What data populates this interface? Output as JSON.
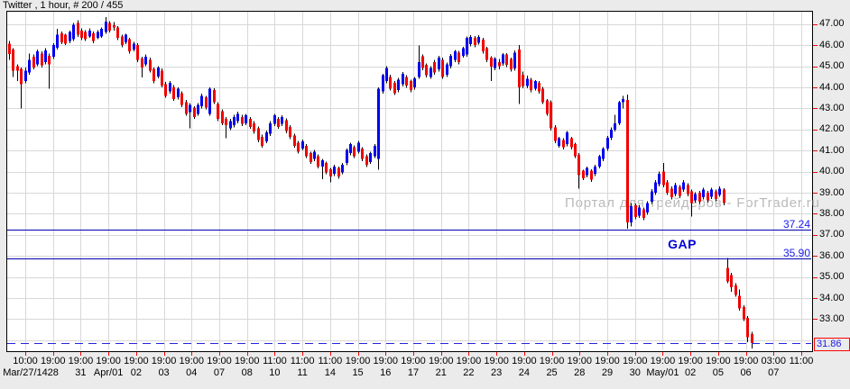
{
  "window": {
    "title": "Twitter , 1 hour, # 200 / 455"
  },
  "watermark": {
    "text": "Портал для трейдеров - ForTrader.ru"
  },
  "colors": {
    "up_candle": "#0000f0",
    "down_candle": "#f20000",
    "wick": "#000000",
    "grid": "#d8d8d8",
    "plot_bg": "#ffffff",
    "outer_bg": "#ebebeb",
    "border": "#000000",
    "level_line": "#0000b0",
    "dashed_line": "#2525dd",
    "level_text": "#1a1aee",
    "gap_text": "#0000d8",
    "watermark_text": "#b9b9b9",
    "axis_tick": "#ff0000",
    "axis_text": "#000000",
    "current_box_border": "#ff0000"
  },
  "chart_data": {
    "type": "candlestick",
    "symbol": "Twitter",
    "timeframe": "1 hour",
    "bar_counter": "# 200 / 455",
    "title": "Twitter , 1 hour, # 200 / 455",
    "grid": true,
    "ylim": [
      31.5,
      47.5
    ],
    "y_axis_labels": [
      "47.00",
      "46.00",
      "45.00",
      "44.00",
      "43.00",
      "42.00",
      "41.00",
      "40.00",
      "39.00",
      "38.00",
      "37.00",
      "36.00",
      "35.00",
      "34.00",
      "33.00"
    ],
    "x_axis_ticks": [
      {
        "time": "10:00",
        "date": "Mar/27/14"
      },
      {
        "time": "19:00",
        "date": "28"
      },
      {
        "time": "19:00",
        "date": "31"
      },
      {
        "time": "19:00",
        "date": "Apr/01"
      },
      {
        "time": "19:00",
        "date": "02"
      },
      {
        "time": "19:00",
        "date": "03"
      },
      {
        "time": "19:00",
        "date": "04"
      },
      {
        "time": "19:00",
        "date": "07"
      },
      {
        "time": "19:00",
        "date": "08"
      },
      {
        "time": "11:00",
        "date": "10"
      },
      {
        "time": "11:00",
        "date": "11"
      },
      {
        "time": "11:00",
        "date": "14"
      },
      {
        "time": "19:00",
        "date": "15"
      },
      {
        "time": "19:00",
        "date": "16"
      },
      {
        "time": "19:00",
        "date": "17"
      },
      {
        "time": "19:00",
        "date": "21"
      },
      {
        "time": "19:00",
        "date": "22"
      },
      {
        "time": "19:00",
        "date": "23"
      },
      {
        "time": "19:00",
        "date": "24"
      },
      {
        "time": "19:00",
        "date": "25"
      },
      {
        "time": "19:00",
        "date": "28"
      },
      {
        "time": "19:00",
        "date": "29"
      },
      {
        "time": "19:00",
        "date": "30"
      },
      {
        "time": "19:00",
        "date": "May/01"
      },
      {
        "time": "19:00",
        "date": "02"
      },
      {
        "time": "19:00",
        "date": "05"
      },
      {
        "time": "19:00",
        "date": "06"
      },
      {
        "time": "03:00",
        "date": "07"
      },
      {
        "time": "11:00",
        "date": ""
      }
    ],
    "levels": {
      "upper": {
        "price": 37.24,
        "label": "37.24",
        "line_style": "solid"
      },
      "lower": {
        "price": 35.9,
        "label": "35.90",
        "line_style": "solid"
      },
      "current": {
        "price": 31.86,
        "label": "31.86",
        "line_style": "dashed",
        "boxed": true
      }
    },
    "gap_label": "GAP",
    "candles_ohlc": [
      [
        46.08,
        46.2,
        45.3,
        45.58
      ],
      [
        45.8,
        45.85,
        44.5,
        44.8
      ],
      [
        45.0,
        45.1,
        44.29,
        44.8
      ],
      [
        44.87,
        44.95,
        43.0,
        44.15
      ],
      [
        44.3,
        44.95,
        44.2,
        44.8
      ],
      [
        44.7,
        45.6,
        44.6,
        45.3
      ],
      [
        45.45,
        45.55,
        44.85,
        44.95
      ],
      [
        45.1,
        45.8,
        45.0,
        45.7
      ],
      [
        45.6,
        45.7,
        44.95,
        45.05
      ],
      [
        45.2,
        45.85,
        45.1,
        45.75
      ],
      [
        45.5,
        45.6,
        43.93,
        45.1
      ],
      [
        45.45,
        46.1,
        45.35,
        46.0
      ],
      [
        45.87,
        46.77,
        45.8,
        46.5
      ],
      [
        46.56,
        46.65,
        46.05,
        46.14
      ],
      [
        46.49,
        46.55,
        46.0,
        46.07
      ],
      [
        46.2,
        46.7,
        46.1,
        46.63
      ],
      [
        46.28,
        47.05,
        46.2,
        46.98
      ],
      [
        47.05,
        47.19,
        46.4,
        46.49
      ],
      [
        46.7,
        46.8,
        46.25,
        46.35
      ],
      [
        46.63,
        46.72,
        46.2,
        46.28
      ],
      [
        46.42,
        46.8,
        46.35,
        46.7
      ],
      [
        46.56,
        46.65,
        46.1,
        46.2
      ],
      [
        46.35,
        46.72,
        46.28,
        46.63
      ],
      [
        46.42,
        46.85,
        46.35,
        46.77
      ],
      [
        46.63,
        47.33,
        46.55,
        47.12
      ],
      [
        47.05,
        47.15,
        46.6,
        46.7
      ],
      [
        46.95,
        47.1,
        46.7,
        46.85
      ],
      [
        46.84,
        46.9,
        46.25,
        46.35
      ],
      [
        46.42,
        46.5,
        45.9,
        46.0
      ],
      [
        46.14,
        46.55,
        46.05,
        46.49
      ],
      [
        46.28,
        46.35,
        45.6,
        45.7
      ],
      [
        45.8,
        46.15,
        45.7,
        46.07
      ],
      [
        46.0,
        46.1,
        45.2,
        45.3
      ],
      [
        45.37,
        45.45,
        44.46,
        44.95
      ],
      [
        45.1,
        45.55,
        45.0,
        45.45
      ],
      [
        45.3,
        45.4,
        44.7,
        44.8
      ],
      [
        44.87,
        44.95,
        44.2,
        44.3
      ],
      [
        44.52,
        45.0,
        44.42,
        44.94
      ],
      [
        44.8,
        44.9,
        44.0,
        44.08
      ],
      [
        44.15,
        44.25,
        43.5,
        43.6
      ],
      [
        43.8,
        44.3,
        43.7,
        44.22
      ],
      [
        44.0,
        44.1,
        43.35,
        43.45
      ],
      [
        43.52,
        44.0,
        43.42,
        43.94
      ],
      [
        43.73,
        43.8,
        43.05,
        43.17
      ],
      [
        43.3,
        43.4,
        42.65,
        42.75
      ],
      [
        42.82,
        43.25,
        42.06,
        43.17
      ],
      [
        43.03,
        43.1,
        42.5,
        42.6
      ],
      [
        42.75,
        43.25,
        42.65,
        43.17
      ],
      [
        43.1,
        43.7,
        43.0,
        43.6
      ],
      [
        43.52,
        43.6,
        42.95,
        43.03
      ],
      [
        42.75,
        44.0,
        42.65,
        43.94
      ],
      [
        43.87,
        43.95,
        43.2,
        43.3
      ],
      [
        43.2,
        43.3,
        42.4,
        42.5
      ],
      [
        42.86,
        42.95,
        42.2,
        42.3
      ],
      [
        42.5,
        42.6,
        41.58,
        42.2
      ],
      [
        42.06,
        42.5,
        41.96,
        42.4
      ],
      [
        42.2,
        42.7,
        42.1,
        42.6
      ],
      [
        42.4,
        42.85,
        42.3,
        42.75
      ],
      [
        42.6,
        42.7,
        42.16,
        42.26
      ],
      [
        42.3,
        42.75,
        42.2,
        42.68
      ],
      [
        42.5,
        42.6,
        42.03,
        42.13
      ],
      [
        42.3,
        42.4,
        41.8,
        41.9
      ],
      [
        42.06,
        42.15,
        41.4,
        41.5
      ],
      [
        41.65,
        41.75,
        41.13,
        41.23
      ],
      [
        41.44,
        41.95,
        41.34,
        41.86
      ],
      [
        41.8,
        42.4,
        41.7,
        42.3
      ],
      [
        42.26,
        42.75,
        42.16,
        42.68
      ],
      [
        42.5,
        42.58,
        42.03,
        42.13
      ],
      [
        42.26,
        42.68,
        42.16,
        42.6
      ],
      [
        42.44,
        42.52,
        41.83,
        41.93
      ],
      [
        42.13,
        42.2,
        41.55,
        41.65
      ],
      [
        41.72,
        41.8,
        41.13,
        41.23
      ],
      [
        41.37,
        41.45,
        40.85,
        40.95
      ],
      [
        41.1,
        41.52,
        41.0,
        41.44
      ],
      [
        41.23,
        41.3,
        40.64,
        40.74
      ],
      [
        40.88,
        40.95,
        40.36,
        40.46
      ],
      [
        40.6,
        41.02,
        40.5,
        40.95
      ],
      [
        40.74,
        40.82,
        40.15,
        40.25
      ],
      [
        40.25,
        40.6,
        39.64,
        40.53
      ],
      [
        40.4,
        40.48,
        39.87,
        39.97
      ],
      [
        40.11,
        40.18,
        39.5,
        39.76
      ],
      [
        39.9,
        40.32,
        39.8,
        40.25
      ],
      [
        40.18,
        40.25,
        39.66,
        39.76
      ],
      [
        39.97,
        40.4,
        39.87,
        40.32
      ],
      [
        40.4,
        41.1,
        40.3,
        41.02
      ],
      [
        40.88,
        41.38,
        40.78,
        41.3
      ],
      [
        41.16,
        41.24,
        40.64,
        40.74
      ],
      [
        40.95,
        41.45,
        40.85,
        41.37
      ],
      [
        41.09,
        41.16,
        40.5,
        40.6
      ],
      [
        40.74,
        40.82,
        40.22,
        40.32
      ],
      [
        40.46,
        40.95,
        40.36,
        40.88
      ],
      [
        40.74,
        41.3,
        40.64,
        41.23
      ],
      [
        40.6,
        44.0,
        40.1,
        43.94
      ],
      [
        43.8,
        44.65,
        43.7,
        44.57
      ],
      [
        44.29,
        45.0,
        44.2,
        44.92
      ],
      [
        44.5,
        44.6,
        43.84,
        43.94
      ],
      [
        44.22,
        44.3,
        43.63,
        43.73
      ],
      [
        43.87,
        44.44,
        43.77,
        44.36
      ],
      [
        44.15,
        44.72,
        44.05,
        44.64
      ],
      [
        44.5,
        44.58,
        43.98,
        44.08
      ],
      [
        44.29,
        44.37,
        43.77,
        43.87
      ],
      [
        44.0,
        44.5,
        43.9,
        44.43
      ],
      [
        44.5,
        45.99,
        44.4,
        45.2
      ],
      [
        45.48,
        45.56,
        44.82,
        44.92
      ],
      [
        45.06,
        45.14,
        44.47,
        44.57
      ],
      [
        44.5,
        45.0,
        44.4,
        44.92
      ],
      [
        45.2,
        45.3,
        44.6,
        44.7
      ],
      [
        44.85,
        45.5,
        44.75,
        45.4
      ],
      [
        45.3,
        45.4,
        44.4,
        44.5
      ],
      [
        44.6,
        45.18,
        44.5,
        45.1
      ],
      [
        45.0,
        45.58,
        44.9,
        45.5
      ],
      [
        45.3,
        45.78,
        45.2,
        45.7
      ],
      [
        45.65,
        45.73,
        45.1,
        45.2
      ],
      [
        45.5,
        45.93,
        45.4,
        45.85
      ],
      [
        45.56,
        46.42,
        45.46,
        46.35
      ],
      [
        46.05,
        46.48,
        45.95,
        46.4
      ],
      [
        46.35,
        46.43,
        45.9,
        46.0
      ],
      [
        46.12,
        46.48,
        46.02,
        46.4
      ],
      [
        46.27,
        46.35,
        45.6,
        45.7
      ],
      [
        45.85,
        45.93,
        45.2,
        45.3
      ],
      [
        45.4,
        45.48,
        44.3,
        44.99
      ],
      [
        44.92,
        45.44,
        44.82,
        45.36
      ],
      [
        45.2,
        45.35,
        44.85,
        45.0
      ],
      [
        45.13,
        45.63,
        45.03,
        45.55
      ],
      [
        45.55,
        45.63,
        44.96,
        45.06
      ],
      [
        45.34,
        45.42,
        44.75,
        44.85
      ],
      [
        44.9,
        45.75,
        44.8,
        45.65
      ],
      [
        45.8,
        46.0,
        43.2,
        44.0
      ],
      [
        44.6,
        44.75,
        43.95,
        44.06
      ],
      [
        44.06,
        44.55,
        43.96,
        44.4
      ],
      [
        44.36,
        44.45,
        43.77,
        43.87
      ],
      [
        43.94,
        44.35,
        43.84,
        44.29
      ],
      [
        44.22,
        44.3,
        43.7,
        43.8
      ],
      [
        43.94,
        44.02,
        43.2,
        43.3
      ],
      [
        43.37,
        43.45,
        42.65,
        42.75
      ],
      [
        43.3,
        43.38,
        41.95,
        42.05
      ],
      [
        42.1,
        42.2,
        41.35,
        41.45
      ],
      [
        41.23,
        41.65,
        41.13,
        41.58
      ],
      [
        41.5,
        41.58,
        41.06,
        41.16
      ],
      [
        41.3,
        41.92,
        41.2,
        41.86
      ],
      [
        41.58,
        41.66,
        41.06,
        41.16
      ],
      [
        41.3,
        41.38,
        40.64,
        40.74
      ],
      [
        40.8,
        40.88,
        39.2,
        39.83
      ],
      [
        40.04,
        40.1,
        39.59,
        39.69
      ],
      [
        39.83,
        40.25,
        39.73,
        40.18
      ],
      [
        40.04,
        40.12,
        39.52,
        39.62
      ],
      [
        39.9,
        40.32,
        39.8,
        40.25
      ],
      [
        40.25,
        40.8,
        40.15,
        40.74
      ],
      [
        40.6,
        41.15,
        40.5,
        41.09
      ],
      [
        41.09,
        41.7,
        40.99,
        41.6
      ],
      [
        41.6,
        42.1,
        41.5,
        42.0
      ],
      [
        42.0,
        42.7,
        41.9,
        42.3
      ],
      [
        42.3,
        43.35,
        42.2,
        43.3
      ],
      [
        43.3,
        43.6,
        43.0,
        43.45
      ],
      [
        43.4,
        43.65,
        37.3,
        37.6
      ],
      [
        37.6,
        38.5,
        37.4,
        38.35
      ],
      [
        38.4,
        38.48,
        37.75,
        37.85
      ],
      [
        37.9,
        38.4,
        37.8,
        38.3
      ],
      [
        38.2,
        38.3,
        37.7,
        37.8
      ],
      [
        38.05,
        38.6,
        37.95,
        38.5
      ],
      [
        38.57,
        39.17,
        38.47,
        39.07
      ],
      [
        39.0,
        39.6,
        38.9,
        39.5
      ],
      [
        39.4,
        40.0,
        39.3,
        39.9
      ],
      [
        40.0,
        40.4,
        39.26,
        39.36
      ],
      [
        39.5,
        39.6,
        38.9,
        39.0
      ],
      [
        39.2,
        39.3,
        38.68,
        38.78
      ],
      [
        38.93,
        39.46,
        38.83,
        39.36
      ],
      [
        39.28,
        39.36,
        38.75,
        38.85
      ],
      [
        39.14,
        39.6,
        39.04,
        39.5
      ],
      [
        39.36,
        39.44,
        38.83,
        38.93
      ],
      [
        39.07,
        39.15,
        37.87,
        38.5
      ],
      [
        38.64,
        39.03,
        38.54,
        38.93
      ],
      [
        39.0,
        39.08,
        38.47,
        38.57
      ],
      [
        38.78,
        39.24,
        38.68,
        39.14
      ],
      [
        39.0,
        39.08,
        38.54,
        38.64
      ],
      [
        38.8,
        39.24,
        38.7,
        39.14
      ],
      [
        39.07,
        39.15,
        38.6,
        38.7
      ],
      [
        38.9,
        39.3,
        38.8,
        39.2
      ],
      [
        39.14,
        39.22,
        38.4,
        38.5
      ],
      [
        35.43,
        35.9,
        34.7,
        34.8
      ],
      [
        35.1,
        35.2,
        34.3,
        34.52
      ],
      [
        34.6,
        34.7,
        34.06,
        34.16
      ],
      [
        34.1,
        34.4,
        33.4,
        33.5
      ],
      [
        33.57,
        33.65,
        32.9,
        33.0
      ],
      [
        33.07,
        33.15,
        31.9,
        32.14
      ],
      [
        32.3,
        32.4,
        31.6,
        31.86
      ]
    ]
  }
}
